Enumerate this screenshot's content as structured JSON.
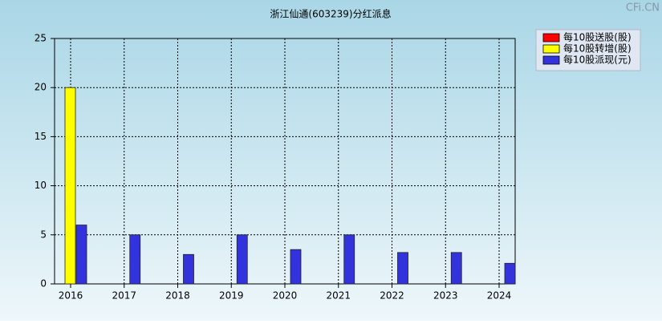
{
  "chart_data": {
    "type": "bar",
    "title": "浙江仙通(603239)分红派息",
    "watermark": "CFi.CN",
    "categories": [
      "2016",
      "2017",
      "2018",
      "2019",
      "2020",
      "2021",
      "2022",
      "2023",
      "2024"
    ],
    "series": [
      {
        "name": "每10股送股(股)",
        "color": "#ff0000",
        "values": [
          0,
          0,
          0,
          0,
          0,
          0,
          0,
          0,
          0
        ]
      },
      {
        "name": "每10股转增(股)",
        "color": "#ffff00",
        "values": [
          20,
          0,
          0,
          0,
          0,
          0,
          0,
          0,
          0
        ]
      },
      {
        "name": "每10股派现(元)",
        "color": "#3333dd",
        "values": [
          6,
          5,
          3,
          5,
          3.5,
          5,
          3.2,
          3.2,
          2.1
        ]
      }
    ],
    "ylim": [
      0,
      25
    ],
    "yticks": [
      0,
      5,
      10,
      15,
      20,
      25
    ],
    "grid": true
  }
}
